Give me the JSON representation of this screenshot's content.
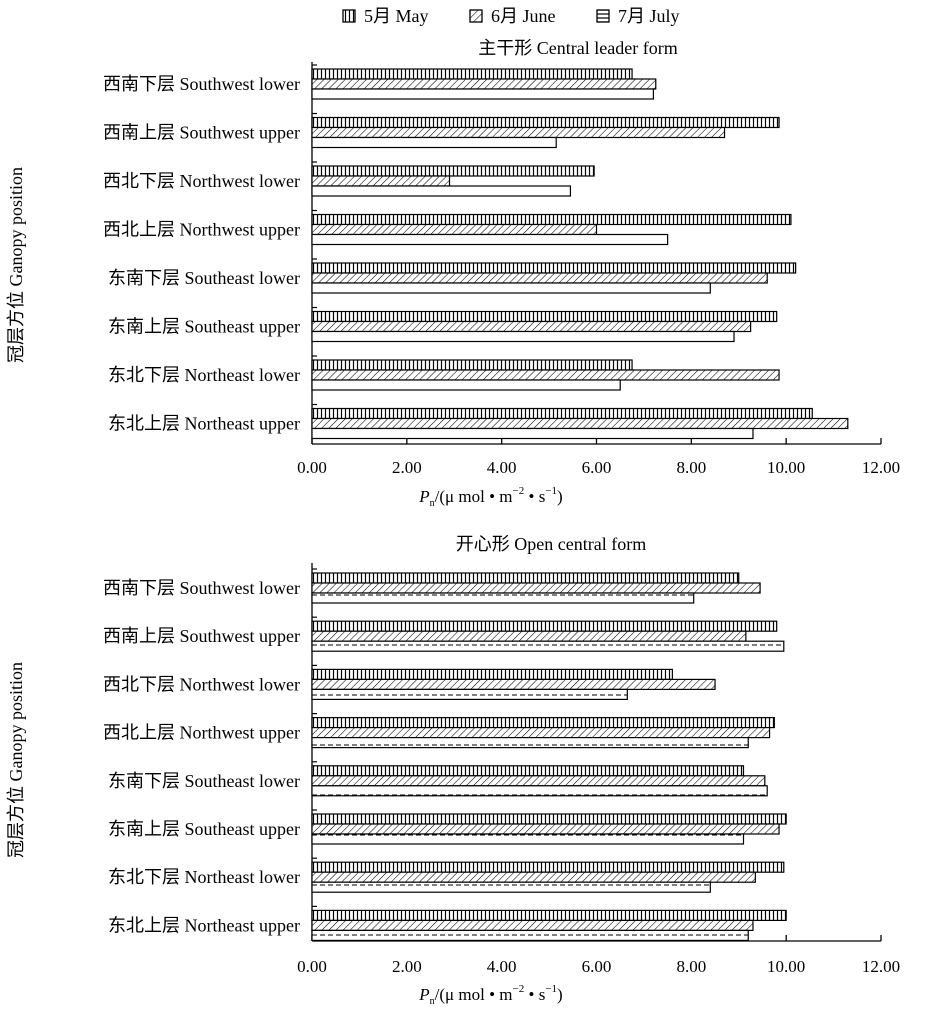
{
  "legend": {
    "items": [
      {
        "label": "5月  May",
        "pattern": "vertical"
      },
      {
        "label": "6月  June",
        "pattern": "diagonal"
      },
      {
        "label": "7月  July",
        "pattern": "horizontal"
      }
    ]
  },
  "colors": {
    "ink": "#000000",
    "background": "#ffffff"
  },
  "chart_data": [
    {
      "type": "bar",
      "orientation": "horizontal",
      "title": "主干形   Central leader form",
      "ylabel": "冠层方位  Ganopy  position",
      "xlabel_main": "P",
      "xlabel_sub": "n",
      "xlabel_rest": "/(μ mol • m",
      "xlabel_sup1": "−2",
      "xlabel_mid": " • s",
      "xlabel_sup2": "−1",
      "xlabel_end": ")",
      "xlim": [
        0,
        12
      ],
      "xticks": [
        "0.00",
        "2.00",
        "4.00",
        "6.00",
        "8.00",
        "10.00",
        "12.00"
      ],
      "grid": false,
      "legend_position": "top",
      "categories": [
        {
          "zh": "西南下层",
          "en": "Southwest lower"
        },
        {
          "zh": "西南上层",
          "en": "Southwest upper"
        },
        {
          "zh": "西北下层",
          "en": "Northwest lower"
        },
        {
          "zh": "西北上层",
          "en": "Northwest upper"
        },
        {
          "zh": "东南下层",
          "en": "Southeast lower"
        },
        {
          "zh": "东南上层",
          "en": "Southeast upper"
        },
        {
          "zh": "东北下层",
          "en": "Northeast lower"
        },
        {
          "zh": "东北上层",
          "en": "Northeast upper"
        }
      ],
      "series": [
        {
          "name": "5月  May",
          "pattern": "vertical",
          "values": [
            6.75,
            9.85,
            5.95,
            10.1,
            10.2,
            9.8,
            6.75,
            10.55
          ]
        },
        {
          "name": "6月  June",
          "pattern": "diagonal",
          "values": [
            7.25,
            8.7,
            2.9,
            6.0,
            9.6,
            9.25,
            9.85,
            11.3
          ]
        },
        {
          "name": "7月  July",
          "pattern": "horizontal",
          "values": [
            7.2,
            5.15,
            5.45,
            7.5,
            8.4,
            8.9,
            6.5,
            9.3
          ]
        }
      ]
    },
    {
      "type": "bar",
      "orientation": "horizontal",
      "title": "开心形   Open central form",
      "ylabel": "冠层方位  Ganopy  position",
      "xlabel_main": "P",
      "xlabel_sub": "n",
      "xlabel_rest": "/(μ mol • m",
      "xlabel_sup1": "−2",
      "xlabel_mid": " • s",
      "xlabel_sup2": "−1",
      "xlabel_end": ")",
      "xlim": [
        0,
        12
      ],
      "xticks": [
        "0.00",
        "2.00",
        "4.00",
        "6.00",
        "8.00",
        "10.00",
        "12.00"
      ],
      "grid": false,
      "legend_position": "top",
      "categories": [
        {
          "zh": "西南下层",
          "en": "Southwest lower"
        },
        {
          "zh": "西南上层",
          "en": "Southwest upper"
        },
        {
          "zh": "西北下层",
          "en": "Northwest lower"
        },
        {
          "zh": "西北上层",
          "en": "Northwest upper"
        },
        {
          "zh": "东南下层",
          "en": "Southeast lower"
        },
        {
          "zh": "东南上层",
          "en": "Southeast upper"
        },
        {
          "zh": "东北下层",
          "en": "Northeast lower"
        },
        {
          "zh": "东北上层",
          "en": "Northeast upper"
        }
      ],
      "series": [
        {
          "name": "5月  May",
          "pattern": "vertical",
          "values": [
            9.0,
            9.8,
            7.6,
            9.75,
            9.1,
            10.0,
            9.95,
            10.0
          ]
        },
        {
          "name": "6月  June",
          "pattern": "diagonal",
          "values": [
            9.45,
            9.15,
            8.5,
            9.65,
            9.55,
            9.85,
            9.35,
            9.3
          ]
        },
        {
          "name": "7月  July",
          "pattern": "horizontal-dashed",
          "values": [
            8.05,
            9.95,
            6.65,
            9.2,
            9.6,
            9.1,
            8.4,
            9.2
          ]
        }
      ]
    }
  ]
}
